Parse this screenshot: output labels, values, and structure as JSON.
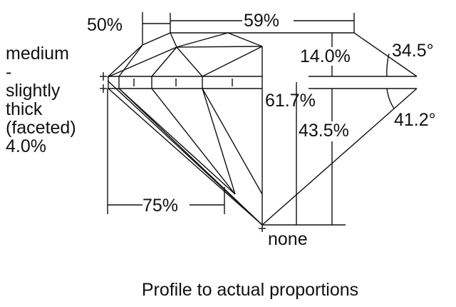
{
  "labels": {
    "girdle_lines": [
      "medium",
      "-",
      "slightly",
      "thick",
      "(faceted)",
      "4.0%"
    ],
    "crown_height_label": "50%",
    "table": "59%",
    "crown_height": "14.0%",
    "crown_angle": "34.5°",
    "total_depth": "61.7%",
    "pavilion_depth": "43.5%",
    "pavilion_angle": "41.2°",
    "lower_half": "75%",
    "culet": "none"
  },
  "caption": "Profile to actual proportions"
}
